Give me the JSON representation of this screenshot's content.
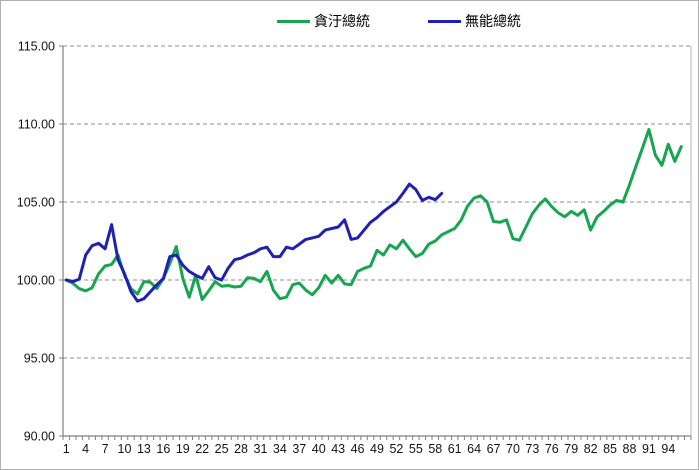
{
  "legend": {
    "series1_label": "貪汙總統",
    "series2_label": "無能總統"
  },
  "colors": {
    "series1": "#17A550",
    "series2": "#2020B4",
    "gridline": "#8c8c8c",
    "axis": "#808080",
    "tick_text": "#141414",
    "background": "#ffffff",
    "chart_border": "#b0b0b0"
  },
  "chart_data": {
    "type": "line",
    "title": "",
    "xlabel": "",
    "ylabel": "",
    "ylim": [
      90,
      115
    ],
    "ytick_step": 5,
    "y_tick_labels": [
      "115.00",
      "110.00",
      "105.00",
      "100.00",
      "95.00",
      "90.00"
    ],
    "x_tick_labels": [
      "1",
      "4",
      "7",
      "10",
      "13",
      "16",
      "19",
      "22",
      "25",
      "28",
      "31",
      "34",
      "37",
      "40",
      "43",
      "46",
      "49",
      "52",
      "55",
      "58",
      "61",
      "64",
      "67",
      "70",
      "73",
      "76",
      "79",
      "82",
      "85",
      "88",
      "91",
      "94"
    ],
    "n_categories": 96,
    "categories": [
      1,
      2,
      3,
      4,
      5,
      6,
      7,
      8,
      9,
      10,
      11,
      12,
      13,
      14,
      15,
      16,
      17,
      18,
      19,
      20,
      21,
      22,
      23,
      24,
      25,
      26,
      27,
      28,
      29,
      30,
      31,
      32,
      33,
      34,
      35,
      36,
      37,
      38,
      39,
      40,
      41,
      42,
      43,
      44,
      45,
      46,
      47,
      48,
      49,
      50,
      51,
      52,
      53,
      54,
      55,
      56,
      57,
      58,
      59,
      60,
      61,
      62,
      63,
      64,
      65,
      66,
      67,
      68,
      69,
      70,
      71,
      72,
      73,
      74,
      75,
      76,
      77,
      78,
      79,
      80,
      81,
      82,
      83,
      84,
      85,
      86,
      87,
      88,
      89,
      90,
      91,
      92,
      93,
      94,
      95,
      96
    ],
    "grid": "horizontal-dashed",
    "legend_position": "top-center",
    "series": [
      {
        "name": "貪汙總統",
        "color": "#17A550",
        "values": [
          100.0,
          99.8,
          99.45,
          99.3,
          99.5,
          100.4,
          100.9,
          101.0,
          101.6,
          100.3,
          99.45,
          99.1,
          99.9,
          99.85,
          99.45,
          100.1,
          101.05,
          102.15,
          100.1,
          98.9,
          100.3,
          98.75,
          99.3,
          99.9,
          99.6,
          99.65,
          99.55,
          99.6,
          100.15,
          100.1,
          99.9,
          100.55,
          99.35,
          98.8,
          98.9,
          99.7,
          99.8,
          99.35,
          99.05,
          99.5,
          100.3,
          99.8,
          100.3,
          99.75,
          99.7,
          100.55,
          100.75,
          100.9,
          101.9,
          101.6,
          102.25,
          102.0,
          102.55,
          102.0,
          101.5,
          101.7,
          102.3,
          102.5,
          102.9,
          103.1,
          103.3,
          103.85,
          104.75,
          105.25,
          105.4,
          105.0,
          103.75,
          103.7,
          103.85,
          102.65,
          102.55,
          103.4,
          104.25,
          104.8,
          105.2,
          104.7,
          104.3,
          104.05,
          104.4,
          104.15,
          104.5,
          103.2,
          104.05,
          104.4,
          104.8,
          105.1,
          105.0,
          106.1,
          107.3,
          108.45,
          109.65,
          108.0,
          107.35,
          108.7,
          107.6,
          108.55
        ]
      },
      {
        "name": "無能總統",
        "color": "#2020B4",
        "values": [
          100.0,
          99.9,
          100.05,
          101.6,
          102.2,
          102.35,
          102.0,
          103.55,
          101.3,
          100.4,
          99.25,
          98.65,
          98.8,
          99.25,
          99.7,
          100.1,
          101.5,
          101.6,
          100.95,
          100.55,
          100.3,
          100.1,
          100.85,
          100.15,
          100.0,
          100.75,
          101.3,
          101.4,
          101.6,
          101.75,
          102.0,
          102.1,
          101.5,
          101.5,
          102.1,
          102.0,
          102.3,
          102.6,
          102.7,
          102.8,
          103.2,
          103.3,
          103.4,
          103.85,
          102.6,
          102.7,
          103.2,
          103.7,
          104.0,
          104.4,
          104.7,
          105.0,
          105.55,
          106.15,
          105.8,
          105.1,
          105.3,
          105.15,
          105.55
        ]
      }
    ]
  }
}
